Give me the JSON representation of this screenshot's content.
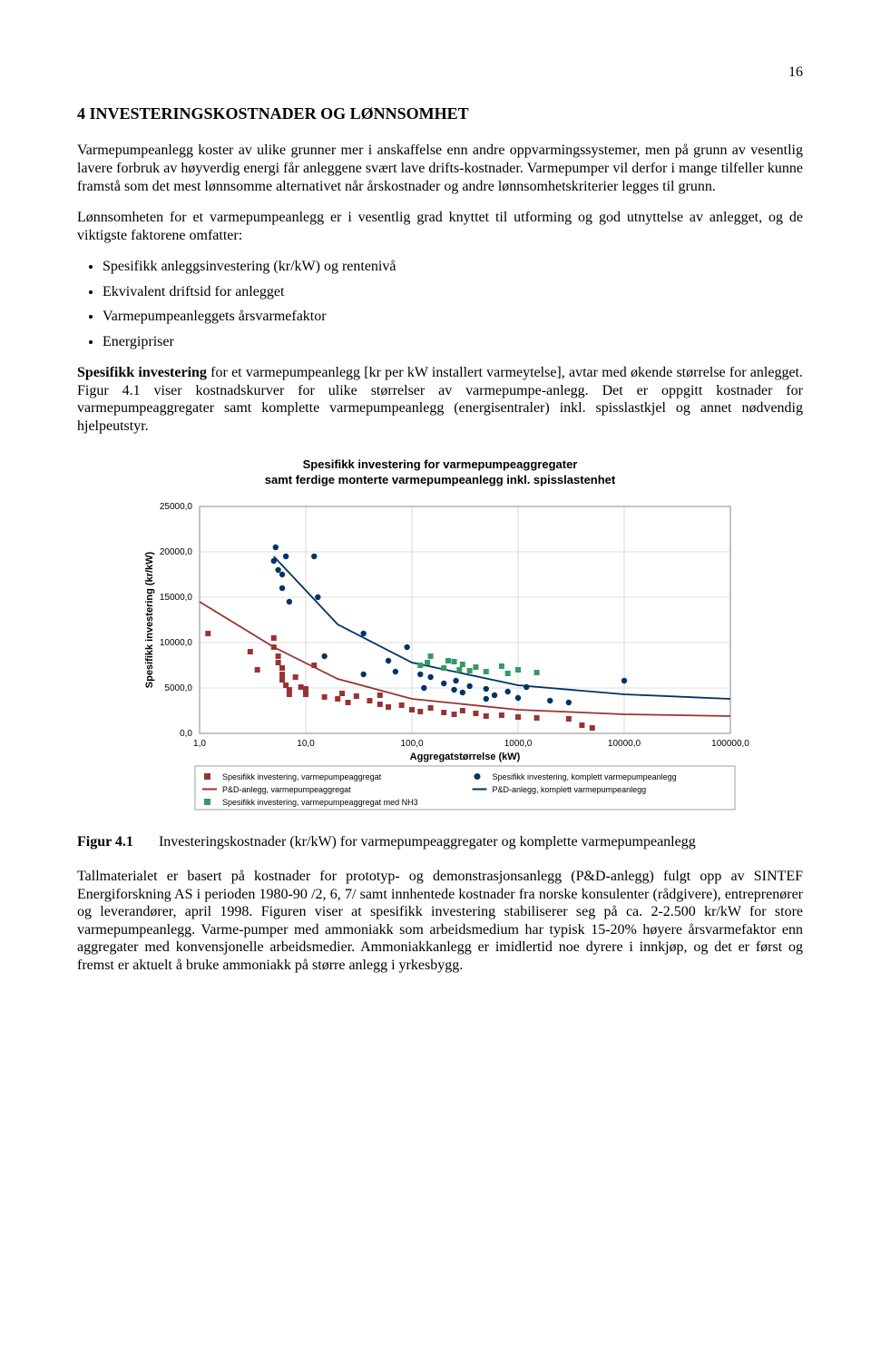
{
  "page_number": "16",
  "heading": "4    INVESTERINGSKOSTNADER OG LØNNSOMHET",
  "para1": "Varmepumpeanlegg koster av ulike grunner mer i anskaffelse enn andre oppvarmingssystemer, men på grunn av vesentlig lavere forbruk av høyverdig energi får anleggene svært lave drifts-kostnader. Varmepumper vil derfor i mange tilfeller kunne framstå som det mest lønnsomme alternativet når årskostnader og andre lønnsomhetskriterier legges til grunn.",
  "para2": "Lønnsomheten for et varmepumpeanlegg er i vesentlig grad knyttet til utforming og god utnyttelse av anlegget, og de viktigste faktorene omfatter:",
  "bullets": [
    "Spesifikk anleggsinvestering (kr/kW) og rentenivå",
    "Ekvivalent driftsid for anlegget",
    "Varmepumpeanleggets årsvarmefaktor",
    "Energipriser"
  ],
  "para3_lead": "Spesifikk investering",
  "para3_rest": " for et varmepumpeanlegg [kr per kW installert varmeytelse], avtar med økende størrelse for anlegget. Figur 4.1 viser kostnadskurver for ulike størrelser av varmepumpe-anlegg. Det er oppgitt kostnader for varmepumpeaggregater samt komplette varmepumpeanlegg (energisentraler) inkl. spisslastkjel og annet nødvendig hjelpeutstyr.",
  "chart": {
    "type": "scatter",
    "title_line1": "Spesifikk investering for varmepumpeaggregater",
    "title_line2": "samt ferdige monterte varmepumpeanlegg inkl. spisslastenhet",
    "xlabel": "Aggregatstørrelse (kW)",
    "ylabel": "Spesifikk investering (kr/kW)",
    "x_scale": "log",
    "xlim": [
      1,
      100000
    ],
    "ylim": [
      0,
      25000
    ],
    "x_ticks": [
      "1,0",
      "10,0",
      "100,0",
      "1000,0",
      "10000,0",
      "100000,0"
    ],
    "y_ticks": [
      "0,0",
      "5000,0",
      "10000,0",
      "15000,0",
      "20000,0",
      "25000,0"
    ],
    "background_color": "#ffffff",
    "grid_color": "#c0c0c0",
    "colors": {
      "aggregat": "#993333",
      "komplett": "#003366",
      "pd_agg_line": "#993333",
      "pd_komplett_line": "#003366",
      "nh3": "#339966"
    },
    "pd_agg_curve": [
      {
        "x": 1,
        "y": 14500
      },
      {
        "x": 5,
        "y": 9500
      },
      {
        "x": 20,
        "y": 6000
      },
      {
        "x": 100,
        "y": 3800
      },
      {
        "x": 1000,
        "y": 2600
      },
      {
        "x": 10000,
        "y": 2100
      },
      {
        "x": 100000,
        "y": 1900
      }
    ],
    "pd_komplett_curve": [
      {
        "x": 5,
        "y": 19500
      },
      {
        "x": 20,
        "y": 12000
      },
      {
        "x": 100,
        "y": 7800
      },
      {
        "x": 1000,
        "y": 5300
      },
      {
        "x": 10000,
        "y": 4300
      },
      {
        "x": 100000,
        "y": 3800
      }
    ],
    "series_aggregat": [
      {
        "x": 1.2,
        "y": 11000
      },
      {
        "x": 3,
        "y": 9000
      },
      {
        "x": 3.5,
        "y": 7000
      },
      {
        "x": 5,
        "y": 10500
      },
      {
        "x": 5,
        "y": 9500
      },
      {
        "x": 5.5,
        "y": 8500
      },
      {
        "x": 5.5,
        "y": 7800
      },
      {
        "x": 6,
        "y": 7200
      },
      {
        "x": 6,
        "y": 6500
      },
      {
        "x": 6,
        "y": 5900
      },
      {
        "x": 6.5,
        "y": 5300
      },
      {
        "x": 7,
        "y": 4800
      },
      {
        "x": 7,
        "y": 4300
      },
      {
        "x": 8,
        "y": 6200
      },
      {
        "x": 9,
        "y": 5100
      },
      {
        "x": 10,
        "y": 4900
      },
      {
        "x": 10,
        "y": 4300
      },
      {
        "x": 12,
        "y": 7500
      },
      {
        "x": 15,
        "y": 4000
      },
      {
        "x": 20,
        "y": 3800
      },
      {
        "x": 22,
        "y": 4400
      },
      {
        "x": 25,
        "y": 3400
      },
      {
        "x": 30,
        "y": 4100
      },
      {
        "x": 40,
        "y": 3600
      },
      {
        "x": 50,
        "y": 3200
      },
      {
        "x": 50,
        "y": 4200
      },
      {
        "x": 60,
        "y": 2900
      },
      {
        "x": 80,
        "y": 3100
      },
      {
        "x": 100,
        "y": 2600
      },
      {
        "x": 120,
        "y": 2400
      },
      {
        "x": 150,
        "y": 2800
      },
      {
        "x": 200,
        "y": 2300
      },
      {
        "x": 250,
        "y": 2100
      },
      {
        "x": 300,
        "y": 2500
      },
      {
        "x": 400,
        "y": 2200
      },
      {
        "x": 500,
        "y": 1900
      },
      {
        "x": 700,
        "y": 2000
      },
      {
        "x": 1000,
        "y": 1800
      },
      {
        "x": 1500,
        "y": 1700
      },
      {
        "x": 3000,
        "y": 1600
      },
      {
        "x": 4000,
        "y": 900
      },
      {
        "x": 5000,
        "y": 600
      }
    ],
    "series_komplett": [
      {
        "x": 5,
        "y": 19000
      },
      {
        "x": 5.2,
        "y": 20500
      },
      {
        "x": 5.5,
        "y": 18000
      },
      {
        "x": 6,
        "y": 17500
      },
      {
        "x": 6,
        "y": 16000
      },
      {
        "x": 6.5,
        "y": 19500
      },
      {
        "x": 7,
        "y": 14500
      },
      {
        "x": 12,
        "y": 19500
      },
      {
        "x": 13,
        "y": 15000
      },
      {
        "x": 15,
        "y": 8500
      },
      {
        "x": 35,
        "y": 11000
      },
      {
        "x": 35,
        "y": 6500
      },
      {
        "x": 60,
        "y": 8000
      },
      {
        "x": 70,
        "y": 6800
      },
      {
        "x": 90,
        "y": 9500
      },
      {
        "x": 120,
        "y": 6500
      },
      {
        "x": 130,
        "y": 5000
      },
      {
        "x": 150,
        "y": 6200
      },
      {
        "x": 200,
        "y": 5500
      },
      {
        "x": 250,
        "y": 4800
      },
      {
        "x": 260,
        "y": 5800
      },
      {
        "x": 300,
        "y": 4500
      },
      {
        "x": 350,
        "y": 5200
      },
      {
        "x": 500,
        "y": 4900
      },
      {
        "x": 500,
        "y": 3800
      },
      {
        "x": 600,
        "y": 4200
      },
      {
        "x": 800,
        "y": 4600
      },
      {
        "x": 1000,
        "y": 3900
      },
      {
        "x": 1200,
        "y": 5100
      },
      {
        "x": 2000,
        "y": 3600
      },
      {
        "x": 3000,
        "y": 3400
      },
      {
        "x": 10000,
        "y": 5800
      }
    ],
    "series_nh3": [
      {
        "x": 120,
        "y": 7500
      },
      {
        "x": 140,
        "y": 7800
      },
      {
        "x": 150,
        "y": 8500
      },
      {
        "x": 200,
        "y": 7200
      },
      {
        "x": 220,
        "y": 8000
      },
      {
        "x": 250,
        "y": 7900
      },
      {
        "x": 280,
        "y": 7000
      },
      {
        "x": 300,
        "y": 7600
      },
      {
        "x": 350,
        "y": 6900
      },
      {
        "x": 400,
        "y": 7300
      },
      {
        "x": 500,
        "y": 6800
      },
      {
        "x": 700,
        "y": 7400
      },
      {
        "x": 800,
        "y": 6600
      },
      {
        "x": 1000,
        "y": 7000
      },
      {
        "x": 1500,
        "y": 6700
      }
    ],
    "legend": [
      {
        "marker": "square",
        "color": "#993333",
        "label": "Spesifikk investering, varmepumpeaggregat"
      },
      {
        "marker": "circle",
        "color": "#003366",
        "label": "Spesifikk investering, komplett varmepumpeanlegg"
      },
      {
        "marker": "line",
        "color": "#993333",
        "label": "P&D-anlegg, varmepumpeaggregat"
      },
      {
        "marker": "line",
        "color": "#003366",
        "label": "P&D-anlegg, komplett varmepumpeanlegg"
      },
      {
        "marker": "square",
        "color": "#339966",
        "label": "Spesifikk investering, varmepumpeaggregat med NH3"
      }
    ]
  },
  "figure_label": "Figur 4.1",
  "figure_caption": "Investeringskostnader (kr/kW) for varmepumpeaggregater og komplette varmepumpeanlegg",
  "para4": "Tallmaterialet er basert på kostnader for prototyp- og demonstrasjonsanlegg (P&D-anlegg) fulgt opp av SINTEF Energiforskning AS i perioden 1980-90 /2, 6, 7/ samt innhentede kostnader fra norske konsulenter (rådgivere), entreprenører og leverandører, april 1998. Figuren viser at spesifikk investering stabiliserer seg på ca. 2-2.500 kr/kW for store varmepumpeanlegg. Varme-pumper med ammoniakk som arbeidsmedium har typisk 15-20% høyere årsvarmefaktor enn aggregater med konvensjonelle arbeidsmedier. Ammoniakkanlegg er imidlertid noe dyrere i innkjøp, og det er først og fremst er aktuelt å bruke ammoniakk på større anlegg i yrkesbygg."
}
